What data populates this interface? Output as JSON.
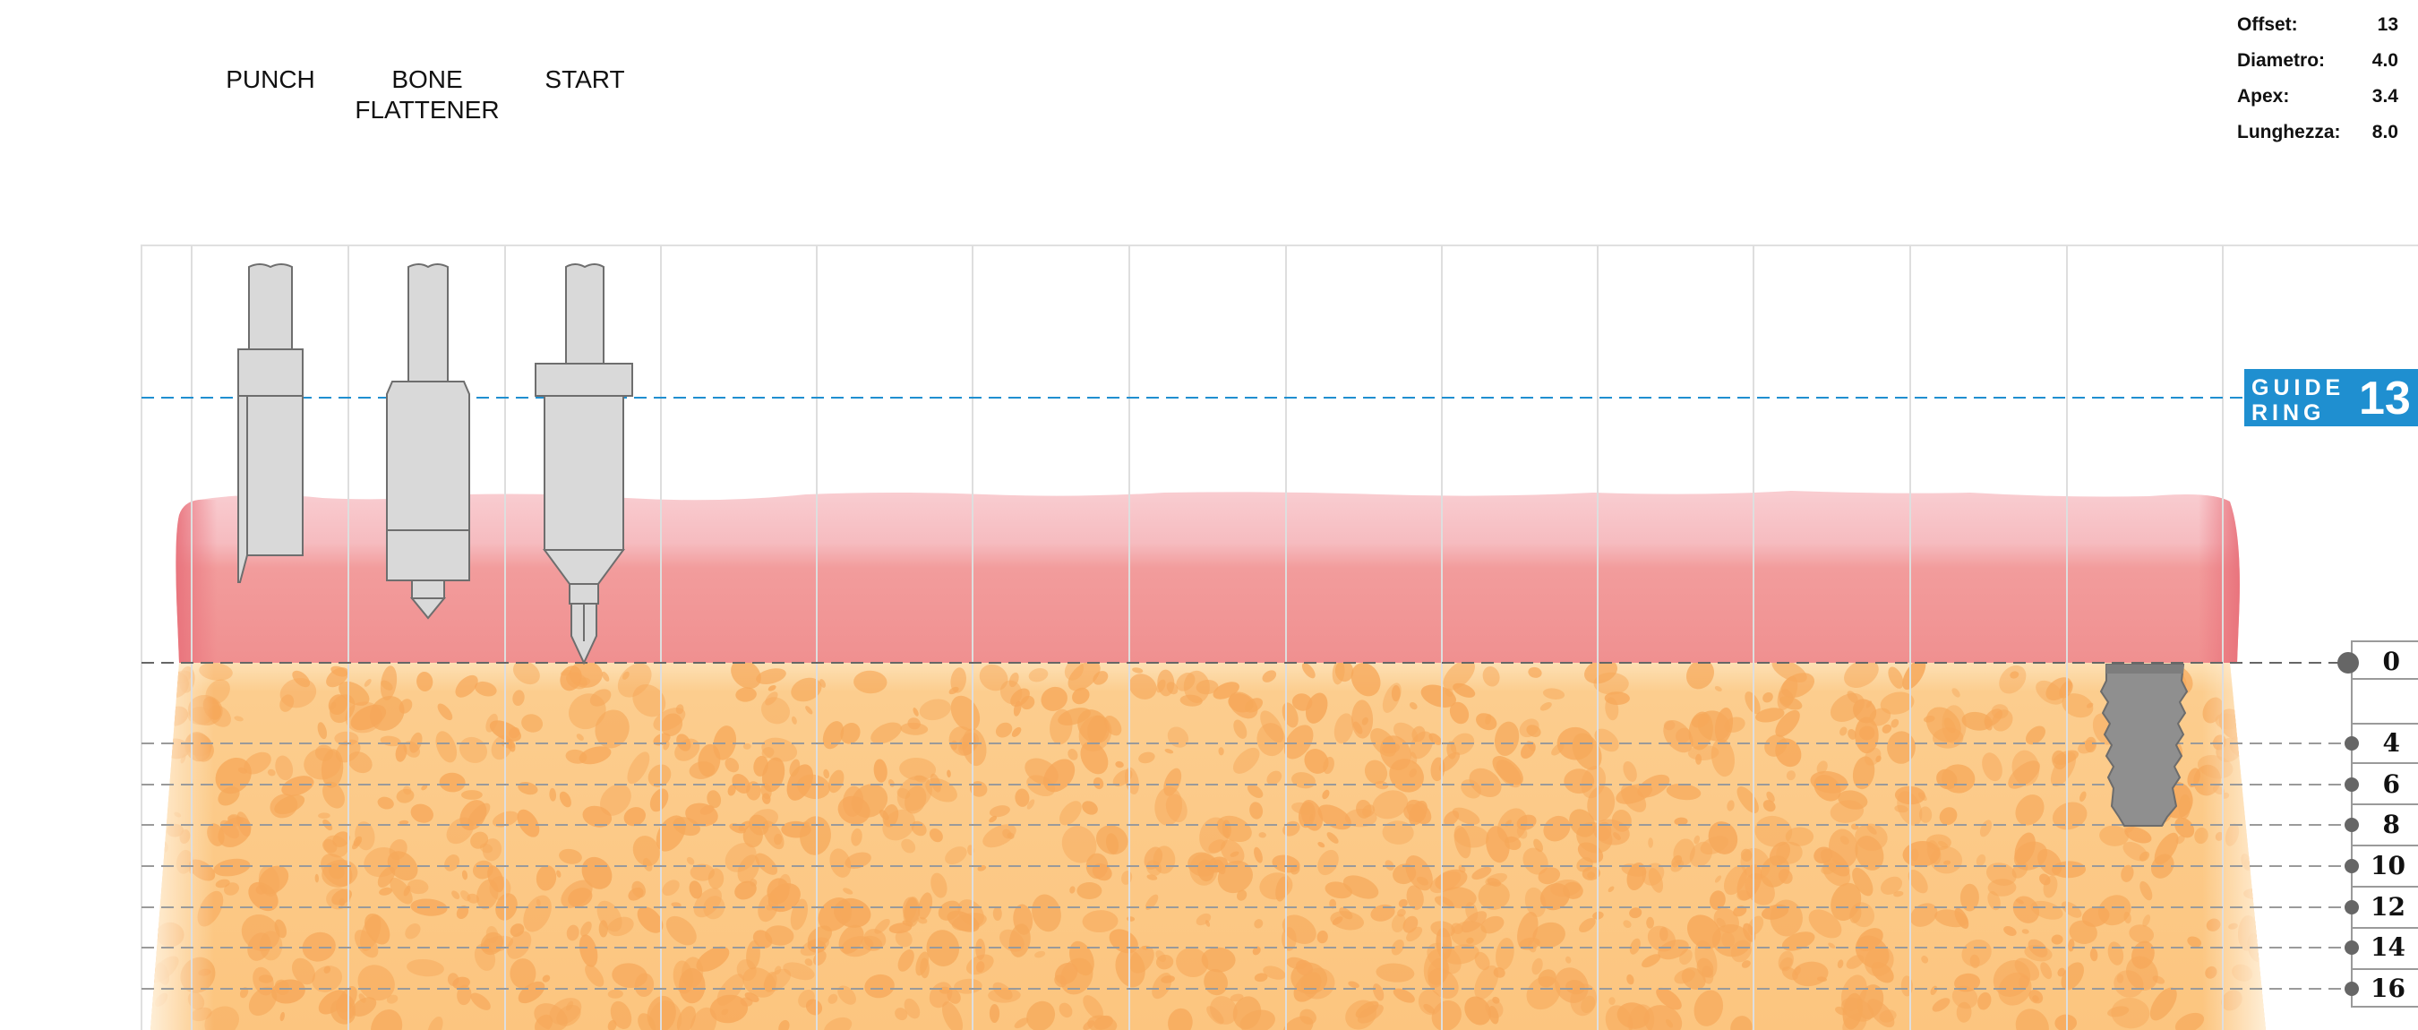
{
  "tools": [
    {
      "label": "PUNCH",
      "icon": "punch-tool-icon"
    },
    {
      "label": "BONE\nFLATTENER",
      "icon": "bone-flattener-tool-icon"
    },
    {
      "label": "START",
      "icon": "start-drill-icon"
    }
  ],
  "info": [
    {
      "label": "Offset:",
      "value": "13"
    },
    {
      "label": "Diametro:",
      "value": "4.0"
    },
    {
      "label": "Apex:",
      "value": "3.4"
    },
    {
      "label": "Lunghezza:",
      "value": "8.0"
    }
  ],
  "guide_ring": {
    "line1": "GUIDE",
    "line2": "RING",
    "number": "13",
    "color": "#1f8fd0"
  },
  "depth_scale": [
    "0",
    "4",
    "6",
    "8",
    "10",
    "12",
    "14",
    "16"
  ],
  "colors": {
    "gum_top": "#f8c7cb",
    "gum_bottom": "#f0908f",
    "bone": "#fcc57f",
    "bone_spot": "#f6a85a",
    "implant": "#8f8f8f",
    "tool_fill": "#d9d9d9"
  }
}
